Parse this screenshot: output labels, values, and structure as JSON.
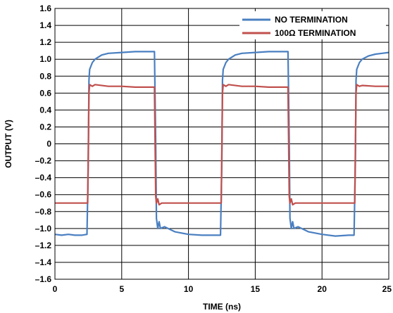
{
  "chart_data": {
    "type": "line",
    "title": "",
    "xlabel": "TIME (ns)",
    "ylabel": "OUTPUT (V)",
    "xlim": [
      0,
      25
    ],
    "ylim": [
      -1.6,
      1.6
    ],
    "x_ticks": [
      0,
      5,
      10,
      15,
      20,
      25
    ],
    "x_tick_labels": [
      "0",
      "5",
      "10",
      "15",
      "20",
      "25"
    ],
    "y_ticks": [
      1.6,
      1.4,
      1.2,
      1.0,
      0.8,
      0.6,
      0.4,
      0.2,
      0,
      -0.2,
      -0.4,
      -0.6,
      -0.8,
      -1.0,
      -1.2,
      -1.4,
      -1.6
    ],
    "y_tick_labels": [
      "1.6",
      "1.4",
      "1.2",
      "1.0",
      "0.8",
      "0.6",
      "0.4",
      "0.2",
      "0",
      "–0.2",
      "–0.4",
      "–0.6",
      "–0.8",
      "–1.0",
      "–1.2",
      "–1.4",
      "–1.6"
    ],
    "grid": true,
    "legend_position": "top-right",
    "series": [
      {
        "name": "NO TERMINATION",
        "color": "#4a7fc1",
        "points": [
          [
            0.0,
            -1.07
          ],
          [
            0.5,
            -1.08
          ],
          [
            1.0,
            -1.07
          ],
          [
            1.5,
            -1.08
          ],
          [
            2.0,
            -1.08
          ],
          [
            2.4,
            -1.07
          ],
          [
            2.5,
            -0.2
          ],
          [
            2.55,
            0.75
          ],
          [
            2.6,
            0.88
          ],
          [
            2.8,
            0.96
          ],
          [
            3.0,
            1.0
          ],
          [
            3.5,
            1.05
          ],
          [
            4.0,
            1.07
          ],
          [
            5.0,
            1.08
          ],
          [
            6.0,
            1.09
          ],
          [
            7.0,
            1.09
          ],
          [
            7.45,
            1.09
          ],
          [
            7.55,
            0.0
          ],
          [
            7.6,
            -0.88
          ],
          [
            7.7,
            -1.0
          ],
          [
            7.8,
            -0.92
          ],
          [
            7.9,
            -1.0
          ],
          [
            8.2,
            -0.98
          ],
          [
            9.0,
            -1.04
          ],
          [
            10.0,
            -1.07
          ],
          [
            11.0,
            -1.08
          ],
          [
            12.0,
            -1.08
          ],
          [
            12.4,
            -1.08
          ],
          [
            12.5,
            -0.2
          ],
          [
            12.55,
            0.75
          ],
          [
            12.6,
            0.88
          ],
          [
            12.8,
            0.96
          ],
          [
            13.0,
            1.0
          ],
          [
            13.5,
            1.05
          ],
          [
            14.0,
            1.07
          ],
          [
            15.0,
            1.08
          ],
          [
            16.0,
            1.09
          ],
          [
            17.0,
            1.09
          ],
          [
            17.45,
            1.09
          ],
          [
            17.55,
            0.0
          ],
          [
            17.6,
            -0.88
          ],
          [
            17.7,
            -1.0
          ],
          [
            17.8,
            -0.92
          ],
          [
            17.9,
            -1.0
          ],
          [
            18.2,
            -0.98
          ],
          [
            19.0,
            -1.04
          ],
          [
            20.0,
            -1.07
          ],
          [
            21.0,
            -1.09
          ],
          [
            22.0,
            -1.08
          ],
          [
            22.4,
            -1.08
          ],
          [
            22.5,
            -0.2
          ],
          [
            22.55,
            0.75
          ],
          [
            22.6,
            0.88
          ],
          [
            22.8,
            0.96
          ],
          [
            23.0,
            1.0
          ],
          [
            23.5,
            1.04
          ],
          [
            24.0,
            1.06
          ],
          [
            24.5,
            1.07
          ],
          [
            25.0,
            1.08
          ]
        ]
      },
      {
        "name": "100Ω TERMINATION",
        "color": "#c0504d",
        "points": [
          [
            0.0,
            -0.7
          ],
          [
            1.0,
            -0.7
          ],
          [
            2.0,
            -0.7
          ],
          [
            2.45,
            -0.7
          ],
          [
            2.55,
            0.6
          ],
          [
            2.6,
            0.7
          ],
          [
            2.8,
            0.68
          ],
          [
            3.0,
            0.7
          ],
          [
            4.0,
            0.68
          ],
          [
            5.0,
            0.68
          ],
          [
            6.0,
            0.67
          ],
          [
            7.0,
            0.67
          ],
          [
            7.45,
            0.67
          ],
          [
            7.55,
            -0.62
          ],
          [
            7.6,
            -0.7
          ],
          [
            7.7,
            -0.65
          ],
          [
            7.8,
            -0.72
          ],
          [
            8.0,
            -0.7
          ],
          [
            9.0,
            -0.7
          ],
          [
            10.0,
            -0.7
          ],
          [
            11.0,
            -0.7
          ],
          [
            12.0,
            -0.7
          ],
          [
            12.45,
            -0.7
          ],
          [
            12.55,
            0.6
          ],
          [
            12.6,
            0.7
          ],
          [
            12.8,
            0.68
          ],
          [
            13.0,
            0.7
          ],
          [
            14.0,
            0.68
          ],
          [
            15.0,
            0.68
          ],
          [
            16.0,
            0.67
          ],
          [
            17.0,
            0.67
          ],
          [
            17.45,
            0.67
          ],
          [
            17.55,
            -0.62
          ],
          [
            17.6,
            -0.7
          ],
          [
            17.7,
            -0.65
          ],
          [
            17.8,
            -0.72
          ],
          [
            18.0,
            -0.7
          ],
          [
            19.0,
            -0.7
          ],
          [
            20.0,
            -0.7
          ],
          [
            21.0,
            -0.7
          ],
          [
            22.0,
            -0.7
          ],
          [
            22.45,
            -0.7
          ],
          [
            22.55,
            0.6
          ],
          [
            22.6,
            0.7
          ],
          [
            22.8,
            0.68
          ],
          [
            23.0,
            0.69
          ],
          [
            24.0,
            0.68
          ],
          [
            25.0,
            0.68
          ]
        ]
      }
    ]
  }
}
